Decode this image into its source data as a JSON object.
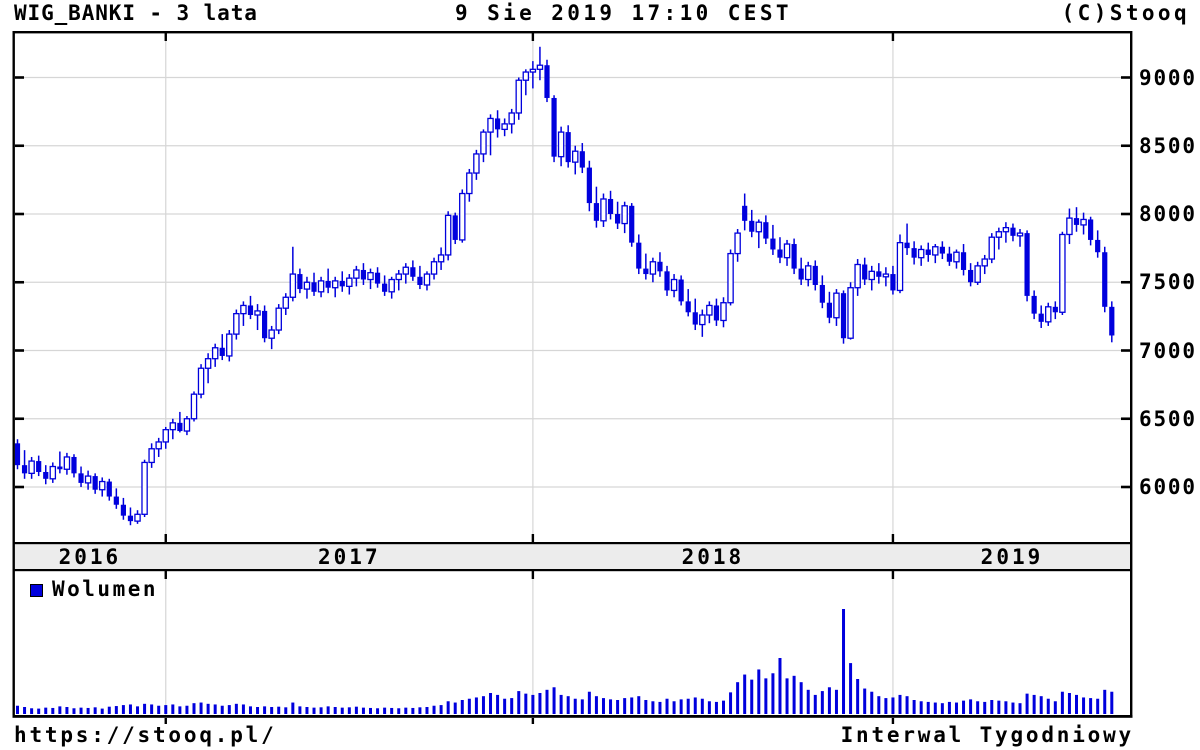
{
  "header": {
    "title": "WIG_BANKI - 3 lata",
    "datetime": "9 Sie 2019 17:10 CEST",
    "copyright": "(C)Stooq"
  },
  "legend": {
    "volume_label": "Wolumen",
    "volume_swatch_icon": "blue-square-icon"
  },
  "footer": {
    "url": "https://stooq.pl/",
    "interval_label": "Interwal Tygodniowy"
  },
  "colors": {
    "candle_blue": "#0000dd",
    "candle_up_fill": "#ffffff",
    "grid_gray": "#d6d6d6",
    "band_fill": "#ececec",
    "axis_black": "#000000",
    "background": "#ffffff"
  },
  "chart_data": {
    "type": "candlestick",
    "symbol": "WIG_BANKI",
    "range_label": "3 lata",
    "interval": "Tygodniowy",
    "legend": [
      "Wolumen"
    ],
    "grid": true,
    "y_axis_side": "right",
    "y_ticks": [
      9000,
      8500,
      8000,
      7500,
      7000,
      6500,
      6000
    ],
    "y_range_visible": [
      5590,
      9330
    ],
    "x_year_labels": [
      "2016",
      "2017",
      "2018",
      "2019"
    ],
    "year_start_indices": {
      "2017": 21,
      "2018": 73,
      "2019": 124
    },
    "volume_max": 1650,
    "candles_format": [
      "open",
      "high",
      "low",
      "close",
      "volume"
    ],
    "candles": [
      [
        6320,
        6350,
        6130,
        6160,
        130
      ],
      [
        6160,
        6270,
        6060,
        6100,
        110
      ],
      [
        6100,
        6220,
        6060,
        6190,
        90
      ],
      [
        6190,
        6230,
        6080,
        6110,
        85
      ],
      [
        6110,
        6160,
        6020,
        6060,
        100
      ],
      [
        6060,
        6180,
        6030,
        6150,
        95
      ],
      [
        6150,
        6260,
        6100,
        6130,
        120
      ],
      [
        6130,
        6250,
        6090,
        6220,
        110
      ],
      [
        6220,
        6240,
        6070,
        6100,
        90
      ],
      [
        6100,
        6150,
        6000,
        6030,
        100
      ],
      [
        6030,
        6120,
        5980,
        6080,
        95
      ],
      [
        6080,
        6100,
        5950,
        5980,
        105
      ],
      [
        5980,
        6070,
        5930,
        6040,
        85
      ],
      [
        6040,
        6060,
        5900,
        5930,
        115
      ],
      [
        5930,
        5990,
        5840,
        5870,
        125
      ],
      [
        5870,
        5920,
        5760,
        5790,
        140
      ],
      [
        5790,
        5850,
        5720,
        5750,
        150
      ],
      [
        5750,
        5830,
        5730,
        5800,
        120
      ],
      [
        5800,
        6200,
        5780,
        6180,
        160
      ],
      [
        6180,
        6320,
        6140,
        6280,
        150
      ],
      [
        6280,
        6360,
        6220,
        6330,
        130
      ],
      [
        6330,
        6440,
        6280,
        6420,
        140
      ],
      [
        6420,
        6500,
        6350,
        6470,
        150
      ],
      [
        6470,
        6550,
        6400,
        6410,
        120
      ],
      [
        6410,
        6520,
        6380,
        6500,
        130
      ],
      [
        6500,
        6700,
        6480,
        6680,
        170
      ],
      [
        6680,
        6900,
        6650,
        6870,
        180
      ],
      [
        6870,
        6980,
        6760,
        6940,
        160
      ],
      [
        6940,
        7050,
        6880,
        7020,
        150
      ],
      [
        7020,
        7120,
        6930,
        6960,
        130
      ],
      [
        6960,
        7150,
        6920,
        7120,
        140
      ],
      [
        7120,
        7300,
        7080,
        7270,
        160
      ],
      [
        7270,
        7360,
        7180,
        7330,
        150
      ],
      [
        7330,
        7400,
        7230,
        7260,
        120
      ],
      [
        7260,
        7340,
        7150,
        7290,
        110
      ],
      [
        7290,
        7330,
        7060,
        7090,
        120
      ],
      [
        7090,
        7180,
        7010,
        7150,
        110
      ],
      [
        7150,
        7340,
        7120,
        7310,
        115
      ],
      [
        7310,
        7420,
        7260,
        7390,
        105
      ],
      [
        7390,
        7760,
        7360,
        7560,
        180
      ],
      [
        7560,
        7600,
        7420,
        7450,
        120
      ],
      [
        7450,
        7540,
        7380,
        7500,
        110
      ],
      [
        7500,
        7570,
        7400,
        7430,
        100
      ],
      [
        7430,
        7540,
        7390,
        7510,
        105
      ],
      [
        7510,
        7600,
        7420,
        7460,
        120
      ],
      [
        7460,
        7540,
        7390,
        7510,
        110
      ],
      [
        7510,
        7580,
        7430,
        7470,
        100
      ],
      [
        7470,
        7560,
        7410,
        7530,
        105
      ],
      [
        7530,
        7620,
        7470,
        7590,
        115
      ],
      [
        7590,
        7640,
        7480,
        7520,
        100
      ],
      [
        7520,
        7600,
        7450,
        7570,
        95
      ],
      [
        7570,
        7610,
        7460,
        7490,
        90
      ],
      [
        7490,
        7550,
        7400,
        7430,
        100
      ],
      [
        7430,
        7540,
        7380,
        7520,
        95
      ],
      [
        7520,
        7590,
        7440,
        7560,
        90
      ],
      [
        7560,
        7640,
        7490,
        7610,
        100
      ],
      [
        7610,
        7660,
        7510,
        7540,
        95
      ],
      [
        7540,
        7620,
        7450,
        7480,
        105
      ],
      [
        7480,
        7580,
        7440,
        7560,
        110
      ],
      [
        7560,
        7680,
        7520,
        7650,
        130
      ],
      [
        7650,
        7755,
        7590,
        7700,
        140
      ],
      [
        7700,
        8020,
        7660,
        7990,
        200
      ],
      [
        7990,
        8010,
        7780,
        7810,
        180
      ],
      [
        7810,
        8180,
        7790,
        8150,
        220
      ],
      [
        8150,
        8330,
        8090,
        8300,
        240
      ],
      [
        8300,
        8470,
        8250,
        8440,
        260
      ],
      [
        8440,
        8620,
        8380,
        8600,
        280
      ],
      [
        8600,
        8730,
        8430,
        8700,
        330
      ],
      [
        8700,
        8760,
        8560,
        8620,
        300
      ],
      [
        8620,
        8700,
        8570,
        8660,
        240
      ],
      [
        8660,
        8770,
        8590,
        8740,
        250
      ],
      [
        8740,
        9000,
        8690,
        8980,
        360
      ],
      [
        8980,
        9060,
        8870,
        9040,
        320
      ],
      [
        9040,
        9120,
        8920,
        9060,
        300
      ],
      [
        9060,
        9225,
        8980,
        9090,
        330
      ],
      [
        9090,
        9130,
        8820,
        8850,
        380
      ],
      [
        8850,
        8870,
        8380,
        8420,
        420
      ],
      [
        8420,
        8640,
        8350,
        8600,
        300
      ],
      [
        8600,
        8650,
        8340,
        8380,
        280
      ],
      [
        8380,
        8500,
        8290,
        8460,
        240
      ],
      [
        8460,
        8520,
        8300,
        8340,
        230
      ],
      [
        8340,
        8390,
        8020,
        8080,
        350
      ],
      [
        8080,
        8200,
        7900,
        7950,
        280
      ],
      [
        7950,
        8150,
        7905,
        8110,
        250
      ],
      [
        8110,
        8170,
        7960,
        8000,
        230
      ],
      [
        8000,
        8090,
        7890,
        7930,
        220
      ],
      [
        7930,
        8090,
        7860,
        8060,
        250
      ],
      [
        8060,
        8080,
        7760,
        7790,
        260
      ],
      [
        7790,
        7850,
        7560,
        7600,
        280
      ],
      [
        7600,
        7710,
        7520,
        7560,
        220
      ],
      [
        7560,
        7680,
        7500,
        7650,
        200
      ],
      [
        7650,
        7720,
        7540,
        7580,
        190
      ],
      [
        7580,
        7620,
        7400,
        7440,
        240
      ],
      [
        7440,
        7560,
        7390,
        7520,
        200
      ],
      [
        7520,
        7550,
        7330,
        7360,
        230
      ],
      [
        7360,
        7450,
        7250,
        7280,
        240
      ],
      [
        7280,
        7380,
        7150,
        7190,
        260
      ],
      [
        7190,
        7300,
        7100,
        7260,
        240
      ],
      [
        7260,
        7360,
        7200,
        7330,
        200
      ],
      [
        7330,
        7380,
        7180,
        7220,
        190
      ],
      [
        7220,
        7390,
        7170,
        7350,
        210
      ],
      [
        7350,
        7740,
        7330,
        7710,
        340
      ],
      [
        7710,
        7890,
        7650,
        7860,
        500
      ],
      [
        8060,
        8150,
        7880,
        7950,
        620
      ],
      [
        7950,
        8030,
        7830,
        7870,
        540
      ],
      [
        7870,
        7960,
        7750,
        7940,
        700
      ],
      [
        7940,
        7990,
        7780,
        7820,
        560
      ],
      [
        7820,
        7920,
        7700,
        7740,
        640
      ],
      [
        7740,
        7830,
        7640,
        7680,
        880
      ],
      [
        7680,
        7810,
        7620,
        7780,
        560
      ],
      [
        7780,
        7820,
        7560,
        7600,
        600
      ],
      [
        7600,
        7680,
        7480,
        7520,
        500
      ],
      [
        7520,
        7650,
        7470,
        7620,
        380
      ],
      [
        7620,
        7660,
        7440,
        7480,
        300
      ],
      [
        7480,
        7550,
        7310,
        7350,
        360
      ],
      [
        7350,
        7430,
        7200,
        7240,
        420
      ],
      [
        7240,
        7450,
        7180,
        7420,
        380
      ],
      [
        7420,
        7440,
        7050,
        7090,
        1650
      ],
      [
        7090,
        7500,
        7080,
        7460,
        800
      ],
      [
        7460,
        7670,
        7400,
        7630,
        550
      ],
      [
        7630,
        7680,
        7480,
        7520,
        400
      ],
      [
        7520,
        7620,
        7440,
        7580,
        350
      ],
      [
        7580,
        7640,
        7490,
        7540,
        280
      ],
      [
        7540,
        7610,
        7470,
        7560,
        250
      ],
      [
        7560,
        7620,
        7410,
        7440,
        260
      ],
      [
        7440,
        7850,
        7420,
        7790,
        300
      ],
      [
        7790,
        7930,
        7700,
        7750,
        280
      ],
      [
        7750,
        7800,
        7630,
        7680,
        220
      ],
      [
        7680,
        7770,
        7620,
        7740,
        200
      ],
      [
        7740,
        7790,
        7650,
        7700,
        190
      ],
      [
        7700,
        7780,
        7640,
        7760,
        180
      ],
      [
        7760,
        7800,
        7670,
        7710,
        170
      ],
      [
        7710,
        7760,
        7620,
        7650,
        190
      ],
      [
        7650,
        7740,
        7600,
        7720,
        180
      ],
      [
        7720,
        7780,
        7550,
        7590,
        210
      ],
      [
        7590,
        7640,
        7470,
        7500,
        230
      ],
      [
        7500,
        7650,
        7480,
        7620,
        200
      ],
      [
        7620,
        7700,
        7560,
        7670,
        190
      ],
      [
        7670,
        7860,
        7640,
        7830,
        220
      ],
      [
        7830,
        7900,
        7740,
        7870,
        210
      ],
      [
        7870,
        7940,
        7790,
        7900,
        200
      ],
      [
        7900,
        7930,
        7800,
        7840,
        180
      ],
      [
        7840,
        7890,
        7760,
        7860,
        170
      ],
      [
        7860,
        7880,
        7360,
        7400,
        320
      ],
      [
        7400,
        7440,
        7230,
        7270,
        300
      ],
      [
        7270,
        7330,
        7165,
        7210,
        280
      ],
      [
        7210,
        7350,
        7180,
        7320,
        240
      ],
      [
        7320,
        7360,
        7230,
        7280,
        200
      ],
      [
        7280,
        7870,
        7260,
        7850,
        350
      ],
      [
        7850,
        8040,
        7780,
        7970,
        330
      ],
      [
        7970,
        8050,
        7870,
        7920,
        300
      ],
      [
        7920,
        8010,
        7850,
        7960,
        260
      ],
      [
        7960,
        7980,
        7770,
        7810,
        250
      ],
      [
        7810,
        7880,
        7680,
        7720,
        240
      ],
      [
        7720,
        7760,
        7280,
        7320,
        380
      ],
      [
        7320,
        7360,
        7060,
        7110,
        350
      ]
    ]
  }
}
